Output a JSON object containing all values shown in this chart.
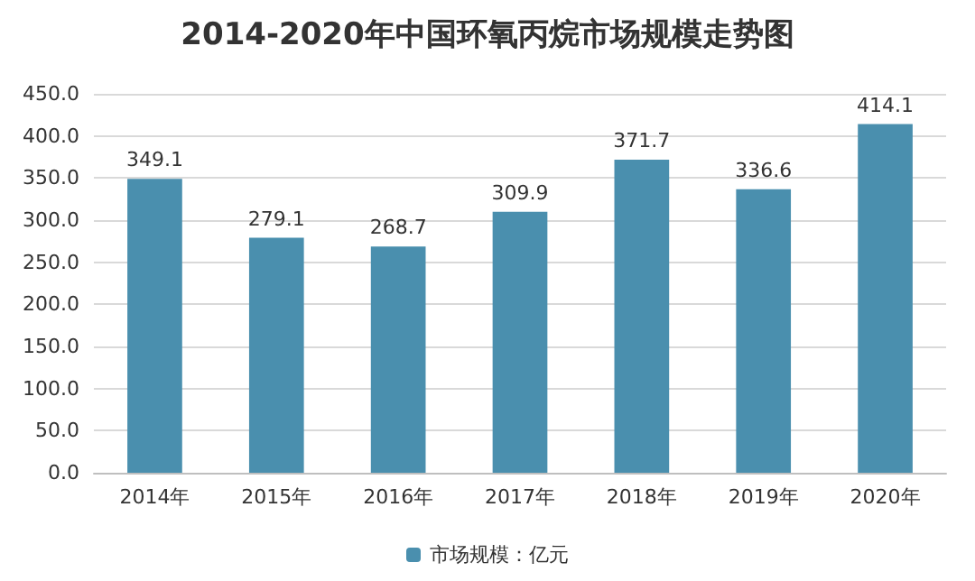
{
  "chart_data": {
    "type": "bar",
    "title": "2014-2020年中国环氧丙烷市场规模走势图",
    "categories": [
      "2014年",
      "2015年",
      "2016年",
      "2017年",
      "2018年",
      "2019年",
      "2020年"
    ],
    "series": [
      {
        "name": "市场规模：亿元",
        "color": "#4a8fae",
        "values": [
          349.1,
          279.1,
          268.7,
          309.9,
          371.7,
          336.6,
          414.1
        ]
      }
    ],
    "ylim": [
      0,
      450
    ],
    "yticks": [
      {
        "value": 0,
        "label": "0.0"
      },
      {
        "value": 50,
        "label": "50.0"
      },
      {
        "value": 100,
        "label": "100.0"
      },
      {
        "value": 150,
        "label": "150.0"
      },
      {
        "value": 200,
        "label": "200.0"
      },
      {
        "value": 250,
        "label": "250.0"
      },
      {
        "value": 300,
        "label": "300.0"
      },
      {
        "value": 350,
        "label": "350.0"
      },
      {
        "value": 400,
        "label": "400.0"
      },
      {
        "value": 450,
        "label": "450.0"
      }
    ],
    "grid": "y",
    "legend": "bottom",
    "data_labels": true
  }
}
